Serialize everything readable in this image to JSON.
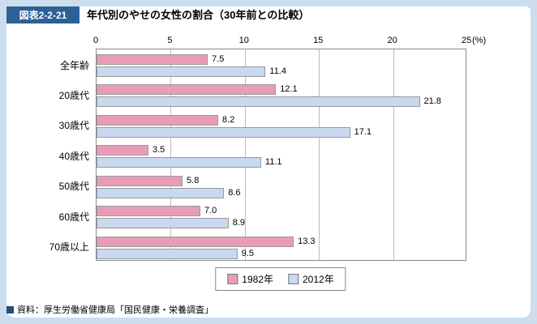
{
  "figure": {
    "label": "図表2-2-21",
    "title": "年代別のやせの女性の割合（30年前との比較）"
  },
  "chart_data": {
    "type": "bar",
    "orientation": "horizontal",
    "title": "年代別のやせの女性の割合（30年前との比較）",
    "categories": [
      "全年齢",
      "20歳代",
      "30歳代",
      "40歳代",
      "50歳代",
      "60歳代",
      "70歳以上"
    ],
    "series": [
      {
        "name": "1982年",
        "color": "#e89cb8",
        "values": [
          7.5,
          12.1,
          8.2,
          3.5,
          5.8,
          7.0,
          13.3
        ]
      },
      {
        "name": "2012年",
        "color": "#c8d8ee",
        "values": [
          11.4,
          21.8,
          17.1,
          11.1,
          8.6,
          8.9,
          9.5
        ]
      }
    ],
    "xlim": [
      0,
      25
    ],
    "x_ticks": [
      0,
      5,
      10,
      15,
      20,
      25
    ],
    "x_unit": "(%)",
    "grid": true,
    "legend_position": "bottom",
    "value_labels": true
  },
  "source": "資料：厚生労働省健康局「国民健康・栄養調査」"
}
